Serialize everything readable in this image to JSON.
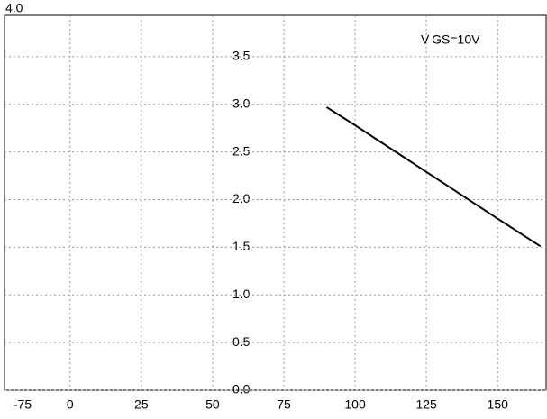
{
  "chart_data": {
    "type": "line",
    "annotations": [
      "V GS=10V",
      "-75"
    ],
    "x": [
      90,
      100,
      125,
      150,
      165
    ],
    "series": [
      {
        "color": "#000000",
        "values": [
          2.97,
          2.78,
          2.29,
          1.8,
          1.51
        ]
      }
    ],
    "xlim": [
      -23,
      167
    ],
    "xticks": [
      0,
      25,
      50,
      75,
      100,
      125,
      150
    ],
    "ylim": [
      0,
      4
    ],
    "yticks": [
      {
        "value": 0,
        "label": "0.0"
      },
      {
        "value": 0.5,
        "label": "0.5"
      },
      {
        "value": 1,
        "label": "1.0"
      },
      {
        "value": 1.5,
        "label": "1.5"
      },
      {
        "value": 2,
        "label": "2.0"
      },
      {
        "value": 2.5,
        "label": "2.5"
      },
      {
        "value": 3,
        "label": "3.0"
      },
      {
        "value": 3.5,
        "label": "3.5"
      },
      {
        "value": 4,
        "label": "4.0"
      }
    ],
    "grid": true
  }
}
